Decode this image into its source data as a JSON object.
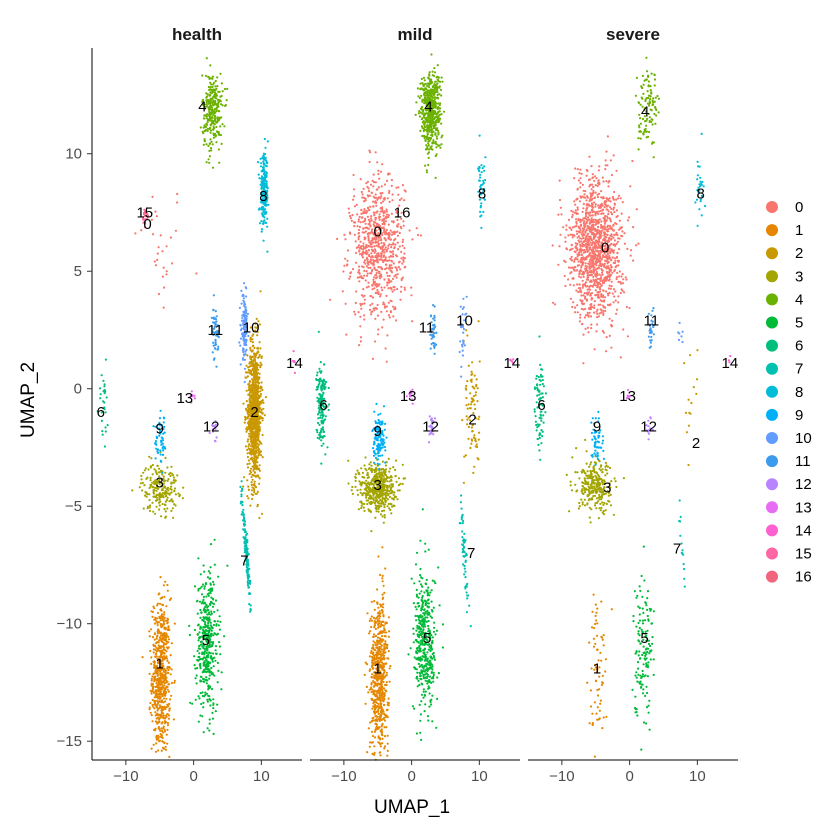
{
  "chart_data": {
    "type": "scatter",
    "facets": [
      "health",
      "mild",
      "severe"
    ],
    "xlabel": "UMAP_1",
    "ylabel": "UMAP_2",
    "xlim": [
      -15,
      16
    ],
    "ylim": [
      -15.8,
      14.5
    ],
    "xticks": [
      -10,
      0,
      10
    ],
    "yticks": [
      -15,
      -10,
      -5,
      0,
      5,
      10
    ],
    "x_tick_labels": [
      "−10",
      "0",
      "10"
    ],
    "y_tick_labels": [
      "−15",
      "−10",
      "−5",
      "0",
      "5",
      "10"
    ],
    "grid": false,
    "legend_position": "right",
    "legend": [
      "0",
      "1",
      "2",
      "3",
      "4",
      "5",
      "6",
      "7",
      "8",
      "9",
      "10",
      "11",
      "12",
      "13",
      "14",
      "15",
      "16"
    ],
    "colors": [
      "#F8766D",
      "#E58700",
      "#C99800",
      "#A3A500",
      "#6BB100",
      "#00BA38",
      "#00BF7D",
      "#00C0AF",
      "#00BCD8",
      "#00B0F6",
      "#619CFF",
      "#3C9BEC",
      "#B983FF",
      "#E76BF3",
      "#FD61D1",
      "#FF67A4",
      "#F2657E"
    ],
    "clusters": [
      {
        "cluster": "0",
        "shape": "blob",
        "center": [
          -5.0,
          6.0
        ],
        "spread": [
          2.6,
          2.0
        ],
        "density": [
          0.02,
          0.55,
          0.9
        ]
      },
      {
        "cluster": "1",
        "shape": "vertical",
        "center": [
          -4.8,
          -12.2
        ],
        "spread": [
          0.9,
          2.2
        ],
        "density": [
          0.45,
          0.45,
          0.05
        ]
      },
      {
        "cluster": "2",
        "shape": "vertical",
        "center": [
          9.0,
          -1.0
        ],
        "spread": [
          0.7,
          2.0
        ],
        "density": [
          0.7,
          0.06,
          0.01
        ]
      },
      {
        "cluster": "3",
        "shape": "blob",
        "center": [
          -5.0,
          -4.2
        ],
        "spread": [
          1.8,
          0.7
        ],
        "density": [
          0.15,
          0.35,
          0.2
        ]
      },
      {
        "cluster": "4",
        "shape": "vertical",
        "center": [
          2.8,
          11.8
        ],
        "spread": [
          1.0,
          1.1
        ],
        "density": [
          0.2,
          0.4,
          0.08
        ]
      },
      {
        "cluster": "5",
        "shape": "vertical",
        "center": [
          2.0,
          -10.8
        ],
        "spread": [
          1.1,
          2.0
        ],
        "density": [
          0.3,
          0.3,
          0.1
        ]
      },
      {
        "cluster": "6",
        "shape": "vertical",
        "center": [
          -13.3,
          -0.6
        ],
        "spread": [
          0.45,
          1.2
        ],
        "density": [
          0.02,
          0.12,
          0.06
        ]
      },
      {
        "cluster": "7",
        "shape": "diagonal",
        "center": [
          7.8,
          -7.0
        ],
        "spread": [
          0.6,
          1.5
        ],
        "density": [
          0.12,
          0.04,
          0.01
        ]
      },
      {
        "cluster": "8",
        "shape": "vertical",
        "center": [
          10.4,
          8.4
        ],
        "spread": [
          0.4,
          1.0
        ],
        "density": [
          0.15,
          0.03,
          0.02
        ]
      },
      {
        "cluster": "9",
        "shape": "vertical",
        "center": [
          -4.8,
          -2.2
        ],
        "spread": [
          0.6,
          0.7
        ],
        "density": [
          0.04,
          0.1,
          0.04
        ]
      },
      {
        "cluster": "10",
        "shape": "vertical",
        "center": [
          7.5,
          2.6
        ],
        "spread": [
          0.3,
          0.9
        ],
        "density": [
          0.1,
          0.02,
          0.005
        ]
      },
      {
        "cluster": "11",
        "shape": "vertical",
        "center": [
          3.2,
          2.4
        ],
        "spread": [
          0.3,
          0.7
        ],
        "density": [
          0.04,
          0.03,
          0.02
        ]
      },
      {
        "cluster": "12",
        "shape": "blob",
        "center": [
          3.0,
          -1.7
        ],
        "spread": [
          0.3,
          0.3
        ],
        "density": [
          0.01,
          0.02,
          0.01
        ]
      },
      {
        "cluster": "13",
        "shape": "blob",
        "center": [
          -0.2,
          -0.3
        ],
        "spread": [
          0.3,
          0.2
        ],
        "density": [
          0.005,
          0.008,
          0.005
        ]
      },
      {
        "cluster": "14",
        "shape": "blob",
        "center": [
          14.8,
          1.2
        ],
        "spread": [
          0.2,
          0.2
        ],
        "density": [
          0.004,
          0.004,
          0.002
        ]
      },
      {
        "cluster": "15",
        "shape": "blob",
        "center": [
          -7.2,
          7.4
        ],
        "spread": [
          0.3,
          0.3
        ],
        "density": [
          0.01,
          0.0,
          0.0
        ]
      },
      {
        "cluster": "16",
        "shape": "blob",
        "center": [
          -7.0,
          7.2
        ],
        "spread": [
          0.3,
          0.3
        ],
        "density": [
          0.006,
          0.0,
          0.0
        ]
      }
    ],
    "cluster_labels": [
      {
        "panel": "health",
        "labels": [
          {
            "text": "0",
            "x": -6.8,
            "y": 7.0
          },
          {
            "text": "15",
            "x": -7.2,
            "y": 7.5
          },
          {
            "text": "1",
            "x": -5.0,
            "y": -11.7
          },
          {
            "text": "2",
            "x": 9.0,
            "y": -1.0
          },
          {
            "text": "3",
            "x": -5.0,
            "y": -4.0
          },
          {
            "text": "4",
            "x": 1.3,
            "y": 12.0
          },
          {
            "text": "5",
            "x": 1.8,
            "y": -10.7
          },
          {
            "text": "6",
            "x": -13.7,
            "y": -1.0
          },
          {
            "text": "7",
            "x": 7.5,
            "y": -7.3
          },
          {
            "text": "8",
            "x": 10.3,
            "y": 8.2
          },
          {
            "text": "9",
            "x": -5.0,
            "y": -1.7
          },
          {
            "text": "10",
            "x": 8.5,
            "y": 2.6
          },
          {
            "text": "11",
            "x": 3.2,
            "y": 2.5
          },
          {
            "text": "12",
            "x": 2.6,
            "y": -1.6
          },
          {
            "text": "13",
            "x": -1.3,
            "y": -0.4
          },
          {
            "text": "14",
            "x": 14.9,
            "y": 1.1
          }
        ]
      },
      {
        "panel": "mild",
        "labels": [
          {
            "text": "0",
            "x": -5.0,
            "y": 6.7
          },
          {
            "text": "16",
            "x": -1.4,
            "y": 7.5
          },
          {
            "text": "1",
            "x": -5.0,
            "y": -11.9
          },
          {
            "text": "2",
            "x": 9.0,
            "y": -1.3
          },
          {
            "text": "3",
            "x": -5.0,
            "y": -4.1
          },
          {
            "text": "4",
            "x": 2.5,
            "y": 12.0
          },
          {
            "text": "5",
            "x": 2.3,
            "y": -10.6
          },
          {
            "text": "6",
            "x": -13.0,
            "y": -0.7
          },
          {
            "text": "7",
            "x": 8.8,
            "y": -7.0
          },
          {
            "text": "8",
            "x": 10.4,
            "y": 8.3
          },
          {
            "text": "9",
            "x": -5.0,
            "y": -1.8
          },
          {
            "text": "10",
            "x": 7.8,
            "y": 2.9
          },
          {
            "text": "11",
            "x": 2.2,
            "y": 2.6
          },
          {
            "text": "12",
            "x": 2.8,
            "y": -1.6
          },
          {
            "text": "13",
            "x": -0.5,
            "y": -0.3
          },
          {
            "text": "14",
            "x": 14.8,
            "y": 1.1
          }
        ]
      },
      {
        "panel": "severe",
        "labels": [
          {
            "text": "0",
            "x": -3.6,
            "y": 6.0
          },
          {
            "text": "1",
            "x": -4.8,
            "y": -11.9
          },
          {
            "text": "2",
            "x": 9.8,
            "y": -2.3
          },
          {
            "text": "3",
            "x": -3.3,
            "y": -4.2
          },
          {
            "text": "4",
            "x": 2.3,
            "y": 11.8
          },
          {
            "text": "5",
            "x": 2.2,
            "y": -10.6
          },
          {
            "text": "6",
            "x": -13.0,
            "y": -0.7
          },
          {
            "text": "7",
            "x": 7.0,
            "y": -6.8
          },
          {
            "text": "8",
            "x": 10.5,
            "y": 8.3
          },
          {
            "text": "9",
            "x": -4.8,
            "y": -1.6
          },
          {
            "text": "11",
            "x": 3.2,
            "y": 2.9
          },
          {
            "text": "12",
            "x": 2.8,
            "y": -1.6
          },
          {
            "text": "13",
            "x": -0.3,
            "y": -0.3
          },
          {
            "text": "14",
            "x": 14.8,
            "y": 1.1
          }
        ]
      }
    ]
  }
}
